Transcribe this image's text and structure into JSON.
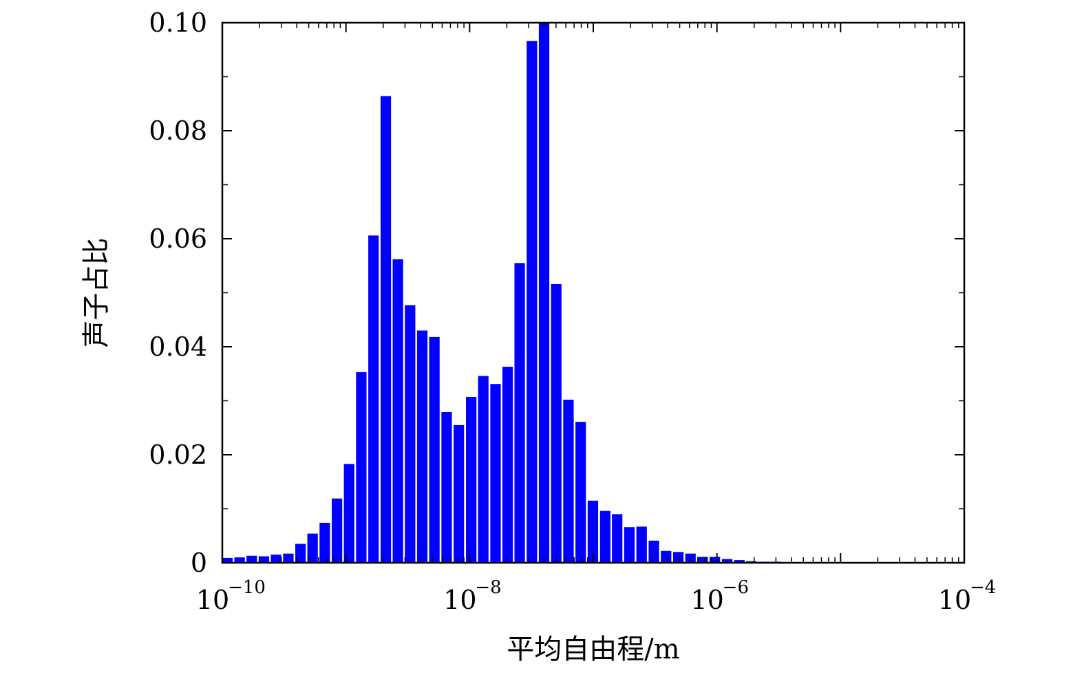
{
  "chart_data": {
    "type": "bar",
    "title": "",
    "xlabel": "平均自由程/m",
    "ylabel": "声子占比",
    "x_scale": "log",
    "xlim": [
      1e-10,
      0.0001
    ],
    "ylim": [
      0,
      0.1
    ],
    "grid": false,
    "bar_color": "#0000ff",
    "x_ticks": [
      {
        "base": "10",
        "exp": "−10"
      },
      {
        "base": "10",
        "exp": "−8"
      },
      {
        "base": "10",
        "exp": "−6"
      },
      {
        "base": "10",
        "exp": "−4"
      }
    ],
    "y_ticks": [
      "0",
      "0.02",
      "0.04",
      "0.06",
      "0.08",
      "0.10"
    ],
    "y_tick_values": [
      0,
      0.02,
      0.04,
      0.06,
      0.08,
      0.1
    ],
    "bar_x": [
      1.1e-10,
      1.38e-10,
      1.73e-10,
      2.17e-10,
      2.72e-10,
      3.42e-10,
      4.29e-10,
      5.37e-10,
      6.74e-10,
      8.46e-10,
      1.06e-09,
      1.33e-09,
      1.67e-09,
      2.1e-09,
      2.63e-09,
      3.3e-09,
      4.14e-09,
      5.19e-09,
      6.52e-09,
      8.18e-09,
      1.03e-08,
      1.29e-08,
      1.62e-08,
      2.03e-08,
      2.54e-08,
      3.19e-08,
      4e-08,
      5.02e-08,
      6.3e-08,
      7.91e-08,
      9.93e-08,
      1.25e-07,
      1.56e-07,
      1.96e-07,
      2.46e-07,
      3.09e-07,
      3.88e-07,
      4.87e-07,
      6.11e-07,
      7.67e-07,
      9.62e-07,
      1.21e-06,
      1.52e-06,
      1.9e-06,
      2.39e-06,
      3e-06,
      3.76e-06,
      4.72e-06,
      5.92e-06
    ],
    "values": [
      0.0009,
      0.001,
      0.0013,
      0.0012,
      0.0015,
      0.0017,
      0.0035,
      0.0054,
      0.0074,
      0.0119,
      0.0183,
      0.0353,
      0.0606,
      0.0864,
      0.0562,
      0.0477,
      0.043,
      0.0418,
      0.0279,
      0.0255,
      0.0307,
      0.0346,
      0.0331,
      0.0363,
      0.0555,
      0.0966,
      0.1,
      0.0516,
      0.0302,
      0.0261,
      0.0115,
      0.0096,
      0.009,
      0.0066,
      0.0067,
      0.0041,
      0.0022,
      0.002,
      0.0017,
      0.0011,
      0.0011,
      0.0007,
      0.0005,
      0.0003,
      0.0002,
      0.0002,
      0.0001,
      0.0001,
      0.0001
    ]
  }
}
